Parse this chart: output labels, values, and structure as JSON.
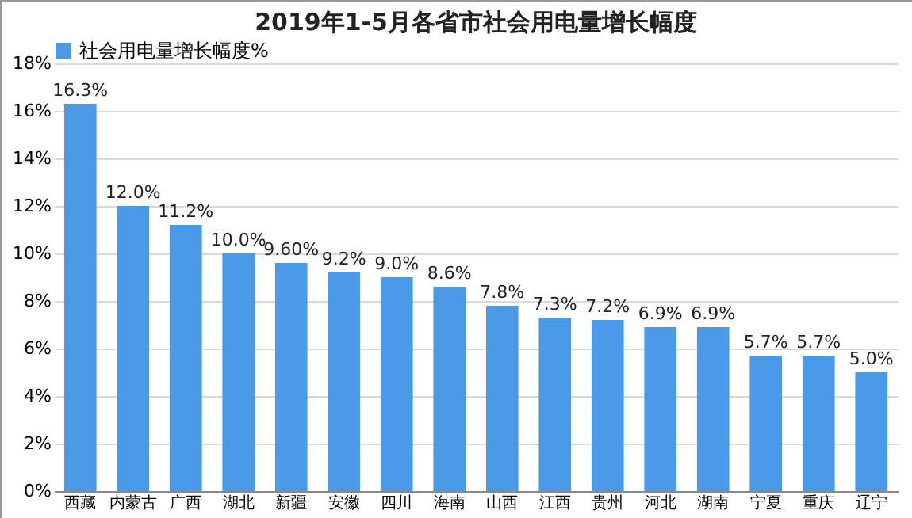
{
  "chart_data": {
    "type": "bar",
    "title": "2019年1-5月各省市社会用电量增长幅度",
    "categories": [
      "西藏",
      "内蒙古",
      "广西",
      "湖北",
      "新疆",
      "安徽",
      "四川",
      "海南",
      "山西",
      "江西",
      "贵州",
      "河北",
      "湖南",
      "宁夏",
      "重庆",
      "辽宁"
    ],
    "series": [
      {
        "name": "社会用电量增长幅度%",
        "color": "#4a9ae8",
        "values": [
          16.3,
          12.0,
          11.2,
          10.0,
          9.6,
          9.2,
          9.0,
          8.6,
          7.8,
          7.3,
          7.2,
          6.9,
          6.9,
          5.7,
          5.7,
          5.0
        ],
        "value_labels": [
          "16.3%",
          "12.0%",
          "11.2%",
          "10.0%",
          "9.60%",
          "9.2%",
          "9.0%",
          "8.6%",
          "7.8%",
          "7.3%",
          "7.2%",
          "6.9%",
          "6.9%",
          "5.7%",
          "5.7%",
          "5.0%"
        ]
      }
    ],
    "ylim": [
      0,
      18
    ],
    "yticks": [
      {
        "value": 0,
        "label": "0%"
      },
      {
        "value": 2,
        "label": "2%"
      },
      {
        "value": 4,
        "label": "4%"
      },
      {
        "value": 6,
        "label": "6%"
      },
      {
        "value": 8,
        "label": "8%"
      },
      {
        "value": 10,
        "label": "10%"
      },
      {
        "value": 12,
        "label": "12%"
      },
      {
        "value": 14,
        "label": "14%"
      },
      {
        "value": 16,
        "label": "16%"
      },
      {
        "value": 18,
        "label": "18%"
      }
    ],
    "grid": "y",
    "legend": "top"
  }
}
